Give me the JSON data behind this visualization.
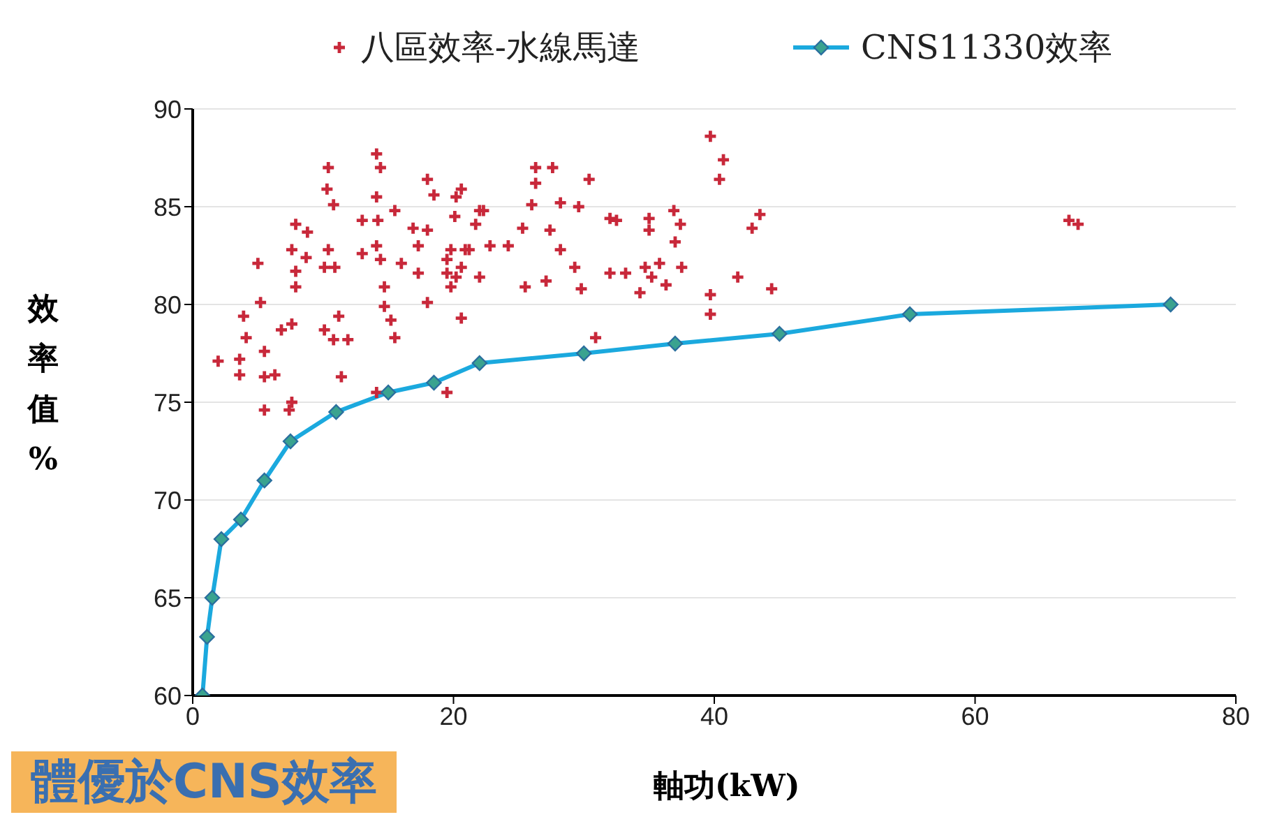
{
  "chart_data": {
    "type": "scatter",
    "xlabel": "軸功(kW)",
    "ylabel": "效率值%",
    "xlim": [
      0,
      80
    ],
    "xticks": [
      0,
      20,
      40,
      60,
      80
    ],
    "ylim": [
      60,
      90
    ],
    "yticks": [
      60,
      65,
      70,
      75,
      80,
      85,
      90
    ],
    "grid": "y",
    "legend": "top",
    "annotations": [
      "體優於CNS效率"
    ],
    "series": [
      {
        "name": "八區效率-水線馬達",
        "marker": "cross",
        "color": "#c8283a",
        "x": [
          1.95,
          3.6,
          3.9,
          4.1,
          3.6,
          5.0,
          5.2,
          5.5,
          5.5,
          6.3,
          5.5,
          7.4,
          7.6,
          6.8,
          7.6,
          7.9,
          8.8,
          7.6,
          8.7,
          7.9,
          7.9,
          10.4,
          10.3,
          10.8,
          10.4,
          10.1,
          10.9,
          10.1,
          11.2,
          10.8,
          11.9,
          11.4,
          14.1,
          14.4,
          14.1,
          15.5,
          13.0,
          14.2,
          14.1,
          13.0,
          14.4,
          14.7,
          14.7,
          15.2,
          15.5,
          14.1,
          18.0,
          18.5,
          20.6,
          20.1,
          22.0,
          16.9,
          18.0,
          17.3,
          16.0,
          17.3,
          19.5,
          20.2,
          21.2,
          22.0,
          18.0,
          20.6,
          19.5,
          39.7,
          40.7,
          40.4,
          26.3,
          27.6,
          26.3,
          30.4,
          26.0,
          28.2,
          29.6,
          25.3,
          27.4,
          24.2,
          28.2,
          22.3,
          20.2,
          21.7,
          22.8,
          19.8,
          20.9,
          19.5,
          20.6,
          19.8,
          25.5,
          27.1,
          29.3,
          29.8,
          32.0,
          32.5,
          32.0,
          33.2,
          35.0,
          35.0,
          36.9,
          37.4,
          37.0,
          34.7,
          35.8,
          35.2,
          34.3,
          36.3,
          37.5,
          39.7,
          39.7,
          41.8,
          42.9,
          43.5,
          44.4,
          30.9,
          67.2,
          67.9
        ],
        "values": [
          77.1,
          76.4,
          79.4,
          78.3,
          77.2,
          82.1,
          80.1,
          77.6,
          76.3,
          76.4,
          74.6,
          74.6,
          75.0,
          78.7,
          79.0,
          84.1,
          83.7,
          82.8,
          82.4,
          81.7,
          80.9,
          87.0,
          85.9,
          85.1,
          82.8,
          81.9,
          81.9,
          78.7,
          79.4,
          78.2,
          78.2,
          76.3,
          87.7,
          87.0,
          85.5,
          84.8,
          84.3,
          84.3,
          83.0,
          82.6,
          82.3,
          80.9,
          79.9,
          79.2,
          78.3,
          75.5,
          86.4,
          85.6,
          85.9,
          84.5,
          84.8,
          83.9,
          83.8,
          83.0,
          82.1,
          81.6,
          82.3,
          81.4,
          82.8,
          81.4,
          80.1,
          79.3,
          75.5,
          88.6,
          87.4,
          86.4,
          87.0,
          87.0,
          86.2,
          86.4,
          85.1,
          85.2,
          85.0,
          83.9,
          83.8,
          83.0,
          82.8,
          84.8,
          85.5,
          84.1,
          83.0,
          82.8,
          82.8,
          81.6,
          81.9,
          80.9,
          80.9,
          81.2,
          81.9,
          80.8,
          84.4,
          84.3,
          81.6,
          81.6,
          84.4,
          83.8,
          84.8,
          84.1,
          83.2,
          81.9,
          82.1,
          81.4,
          80.6,
          81.0,
          81.9,
          80.5,
          79.5,
          81.4,
          83.9,
          84.6,
          80.8,
          78.3,
          84.3,
          84.1
        ]
      },
      {
        "name": "CNS11330效率",
        "type": "line",
        "marker": "diamond",
        "line_style": "solid",
        "color": "#1ba9de",
        "x": [
          0.75,
          1.1,
          1.5,
          2.2,
          3.7,
          5.5,
          7.5,
          11,
          15,
          18.5,
          22,
          30,
          37,
          45,
          55,
          75
        ],
        "values": [
          60,
          63,
          65,
          68,
          69,
          71,
          73,
          74.5,
          75.5,
          76,
          77,
          77.5,
          78,
          78.5,
          79.5,
          80
        ]
      }
    ]
  }
}
